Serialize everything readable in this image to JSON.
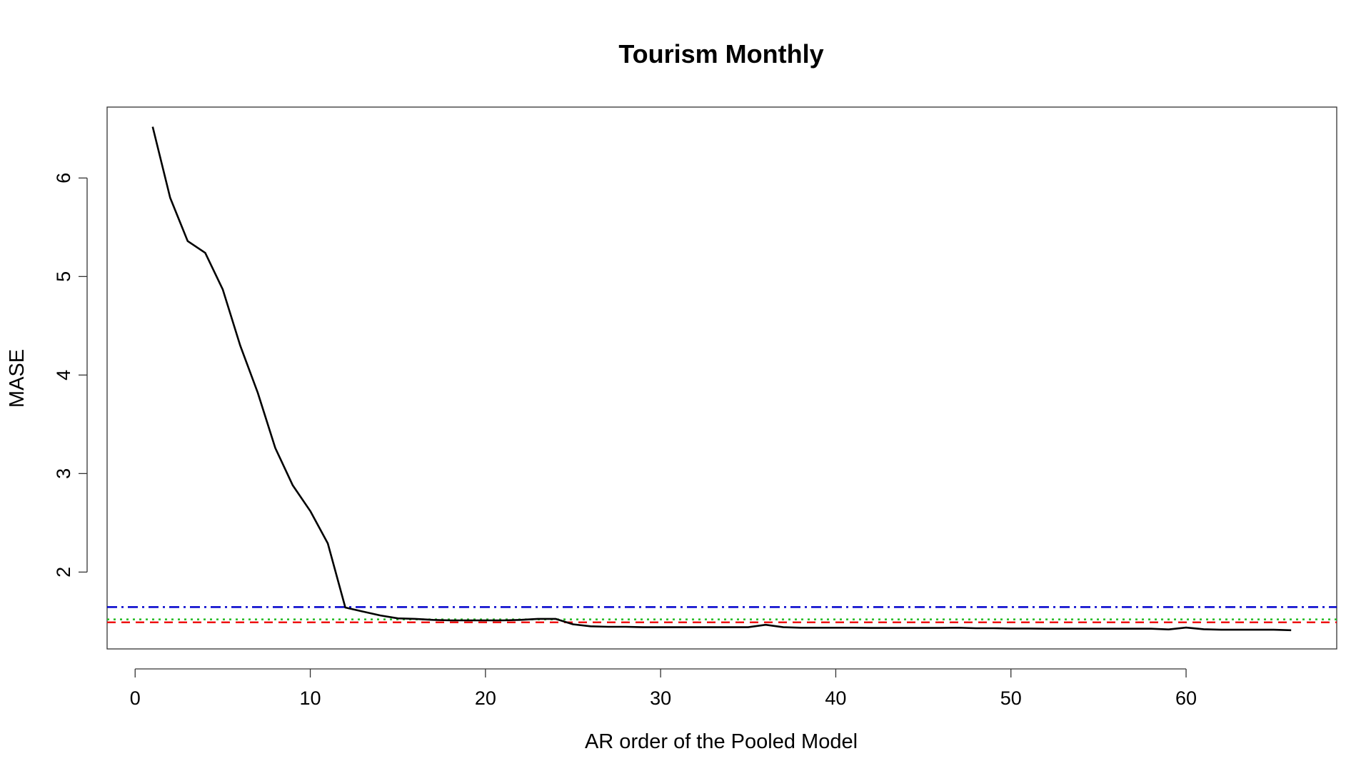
{
  "chart_data": {
    "type": "line",
    "title": "Tourism Monthly",
    "xlabel": "AR order of the Pooled Model",
    "ylabel": "MASE",
    "xlim": [
      -1.6,
      68.6
    ],
    "ylim": [
      1.22,
      6.72
    ],
    "x_ticks": [
      0,
      10,
      20,
      30,
      40,
      50,
      60
    ],
    "y_ticks": [
      2,
      3,
      4,
      5,
      6
    ],
    "x_tick_labels": [
      "0",
      "10",
      "20",
      "30",
      "40",
      "50",
      "60"
    ],
    "y_tick_labels": [
      "2",
      "3",
      "4",
      "5",
      "6"
    ],
    "grid": false,
    "legend": "none",
    "series": [
      {
        "color": "#000000",
        "style": "solid",
        "x": [
          1,
          2,
          3,
          4,
          5,
          6,
          7,
          8,
          9,
          10,
          11,
          12,
          13,
          14,
          15,
          16,
          17,
          18,
          19,
          20,
          21,
          22,
          23,
          24,
          25,
          26,
          27,
          28,
          29,
          30,
          31,
          32,
          33,
          34,
          35,
          36,
          37,
          38,
          39,
          40,
          41,
          42,
          43,
          44,
          45,
          46,
          47,
          48,
          49,
          50,
          51,
          52,
          53,
          54,
          55,
          56,
          57,
          58,
          59,
          60,
          61,
          62,
          63,
          64,
          65,
          66
        ],
        "values": [
          6.52,
          5.8,
          5.36,
          5.24,
          4.87,
          4.3,
          3.82,
          3.26,
          2.88,
          2.62,
          2.29,
          1.64,
          1.6,
          1.56,
          1.53,
          1.525,
          1.515,
          1.51,
          1.51,
          1.51,
          1.51,
          1.515,
          1.525,
          1.525,
          1.47,
          1.45,
          1.445,
          1.445,
          1.44,
          1.44,
          1.44,
          1.44,
          1.44,
          1.44,
          1.44,
          1.465,
          1.44,
          1.435,
          1.435,
          1.435,
          1.435,
          1.433,
          1.433,
          1.433,
          1.433,
          1.433,
          1.435,
          1.43,
          1.43,
          1.427,
          1.427,
          1.425,
          1.425,
          1.425,
          1.425,
          1.425,
          1.425,
          1.425,
          1.418,
          1.437,
          1.42,
          1.415,
          1.415,
          1.415,
          1.415,
          1.41
        ]
      }
    ],
    "hlines": [
      {
        "y": 1.645,
        "color": "#0000cc",
        "style": "dashdot"
      },
      {
        "y": 1.52,
        "color": "#22bb22",
        "style": "dotted"
      },
      {
        "y": 1.49,
        "color": "#ee1111",
        "style": "dashed"
      }
    ]
  }
}
